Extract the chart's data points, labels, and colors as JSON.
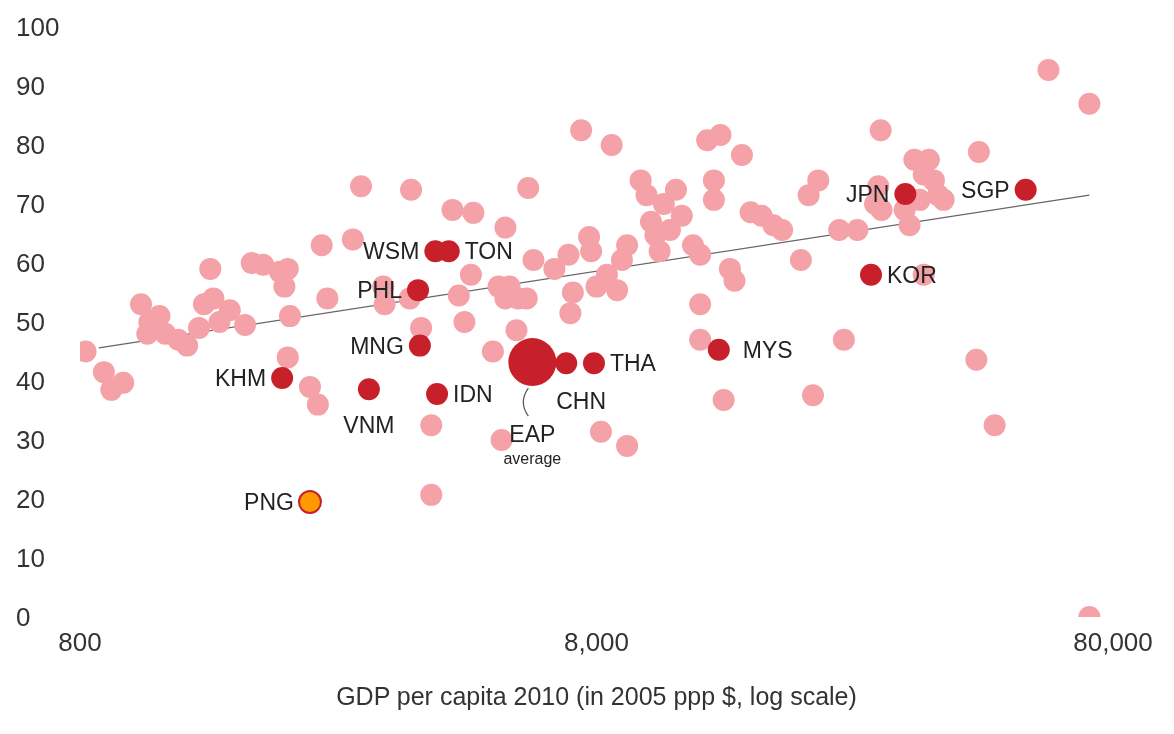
{
  "chart_data": {
    "type": "scatter",
    "xlabel": "GDP per capita 2010 (in 2005 ppp $, log scale)",
    "log": "x",
    "grid": false,
    "marker": "circle",
    "xlim": [
      800,
      80000
    ],
    "xticks": [
      800,
      {
        "value": 8000,
        "label": "8,000"
      },
      {
        "value": 80000,
        "label": "80,000"
      }
    ],
    "ylim": [
      0,
      100
    ],
    "yticks": [
      0,
      10,
      20,
      30,
      40,
      50,
      60,
      70,
      80,
      90,
      100
    ],
    "series": [
      {
        "color": "#f4a1a7",
        "x": [
          820,
          890,
          920,
          970,
          1050,
          1090,
          1140,
          1080,
          1170,
          1240,
          1290,
          1360,
          1430,
          1390,
          1450,
          1490,
          1560,
          1670,
          1720,
          1810,
          1950,
          2020,
          1990,
          2040,
          2020,
          2230,
          2310,
          2350,
          2410,
          2800,
          2700,
          3090,
          3110,
          3500,
          3480,
          3660,
          4210,
          4620,
          4570,
          4330,
          4440,
          3830,
          3830,
          5330,
          5170,
          5330,
          5430,
          5640,
          5860,
          5600,
          5040,
          5240,
          5900,
          6040,
          6630,
          7060,
          7200,
          7120,
          7470,
          7740,
          7810,
          8000,
          8560,
          8380,
          8770,
          8960,
          9170,
          9740,
          10000,
          10200,
          10400,
          10600,
          10800,
          11100,
          11400,
          11700,
          12300,
          12700,
          13500,
          13500,
          13100,
          13900,
          15300,
          12700,
          12700,
          8160,
          9170,
          14500,
          14800,
          14100,
          15900,
          16700,
          17600,
          18300,
          19900,
          20600,
          21500,
          21000,
          23600,
          24100,
          25600,
          28400,
          28100,
          27700,
          28500,
          31600,
          32300,
          33000,
          34400,
          35200,
          36000,
          36700,
          37600,
          33800,
          34400,
          44000,
          43500,
          47200,
          60000,
          72000,
          72000
        ],
        "values": [
          45,
          41.5,
          38.5,
          39.7,
          53,
          50,
          51,
          48,
          48,
          47,
          46,
          49,
          59,
          53,
          54,
          50,
          52,
          49.5,
          60,
          59.7,
          58.5,
          59,
          56,
          51,
          44,
          39,
          36,
          63,
          54,
          73,
          64,
          56,
          53,
          72.4,
          54,
          49,
          69,
          68.5,
          58,
          54.5,
          50,
          32.5,
          20.7,
          66,
          56,
          54,
          56,
          54,
          54,
          48.6,
          45,
          30,
          72.7,
          60.5,
          59,
          61.4,
          55,
          51.5,
          82.5,
          64.4,
          62,
          56,
          80,
          58,
          55.4,
          60.5,
          63,
          74,
          71.5,
          67,
          64.7,
          62,
          70,
          65.6,
          72.4,
          68,
          63,
          61.4,
          70.7,
          74,
          80.8,
          81.7,
          78.3,
          53,
          47,
          31.4,
          29,
          59,
          57,
          36.8,
          68.6,
          68,
          66.4,
          65.6,
          60.5,
          71.5,
          74,
          37.6,
          65.6,
          47,
          65.6,
          82.5,
          73,
          70,
          69,
          69,
          66.4,
          77.5,
          75,
          77.5,
          74,
          71.5,
          70.7,
          70.7,
          58,
          78.8,
          43.6,
          32.5,
          92.7,
          87,
          0
        ]
      },
      {
        "type": "bubble",
        "color": "#c8202a",
        "colors": [
          "#c8202a",
          "#c8202a",
          "#c8202a",
          "#c8202a",
          "#c8202a",
          "#c8202a",
          "#c8202a",
          "#c8202a",
          "#c8202a",
          "#c8202a",
          "#c8202a",
          "#c8202a",
          "#c8202a",
          "#c8202a",
          "#ff9900"
        ],
        "x": [
          1970,
          2900,
          3930,
          3640,
          3610,
          3900,
          4140,
          6010,
          6990,
          7910,
          13800,
          27200,
          31700,
          54200,
          2230
        ],
        "values": [
          40.5,
          38.6,
          37.8,
          46,
          55.4,
          62,
          62,
          43.2,
          43,
          43,
          45.3,
          58,
          71.7,
          72.4,
          19.5
        ],
        "sizes": [
          0.21,
          0.21,
          0.21,
          0.21,
          0.21,
          0.21,
          0.21,
          1,
          0.21,
          0.21,
          0.21,
          0.21,
          0.21,
          0.21,
          0.21
        ]
      },
      {
        "type": "line",
        "marker": "none",
        "color": "#666666",
        "x": [
          870,
          72000
        ],
        "values": [
          45.6,
          71.5
        ]
      }
    ],
    "annotations": [
      {
        "text": "KHM",
        "x": 1970,
        "y": 40.5
      },
      {
        "text": "VNM",
        "x": 2900,
        "y": 38.6
      },
      {
        "text": "IDN",
        "x": 3930,
        "y": 37.8
      },
      {
        "text": "MNG",
        "x": 3640,
        "y": 46
      },
      {
        "text": "PHL",
        "x": 3610,
        "y": 55.4
      },
      {
        "text": "WSM",
        "x": 3900,
        "y": 62
      },
      {
        "text": "TON",
        "x": 4140,
        "y": 62
      },
      {
        "text": "EAP",
        "x": 6010,
        "y": 43.2
      },
      "average",
      {
        "text": "CHN",
        "x": 6990,
        "y": 43
      },
      {
        "text": "THA",
        "x": 7910,
        "y": 43
      },
      {
        "text": "MYS",
        "x": 13800,
        "y": 45.3
      },
      {
        "text": "KOR",
        "x": 27200,
        "y": 58
      },
      {
        "text": "JPN",
        "x": 31700,
        "y": 71.7
      },
      {
        "text": "SGP",
        "x": 54200,
        "y": 72.4
      },
      {
        "text": "PNG",
        "x": 2230,
        "y": 19.5
      }
    ]
  }
}
